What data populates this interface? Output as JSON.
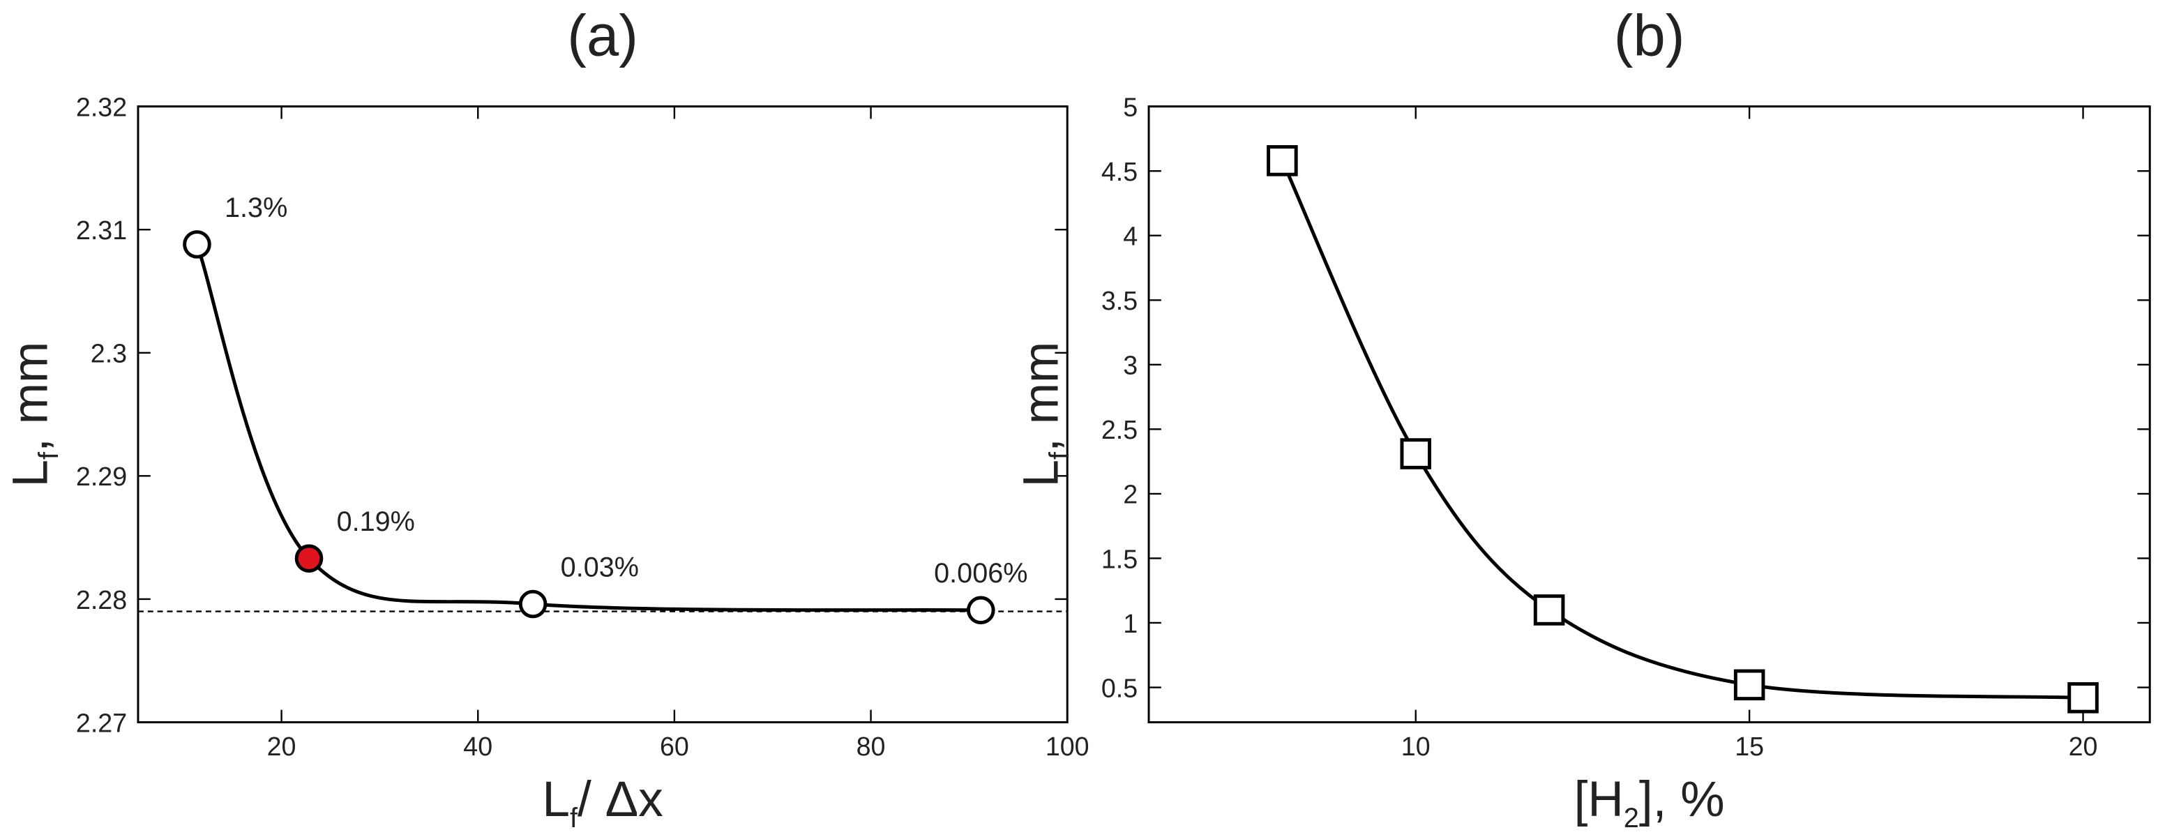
{
  "chart_data": [
    {
      "type": "line",
      "title": "(a)",
      "xlabel": [
        "L",
        "f",
        "/ Δx"
      ],
      "ylabel": [
        "L",
        "f",
        ", mm"
      ],
      "x": [
        11.4,
        22.8,
        45.6,
        91.2
      ],
      "series": [
        {
          "color": "#000000",
          "marker": "circle",
          "marker_fill": [
            "#ffffff",
            "#e0141e",
            "#ffffff",
            "#ffffff"
          ],
          "values": [
            2.3088,
            2.2833,
            2.2796,
            2.2791
          ],
          "value_labels": [
            "1.3%",
            "0.19%",
            "0.03%",
            "0.006%"
          ]
        }
      ],
      "reference_line": 2.279,
      "xlim": [
        5.4,
        100
      ],
      "xticks": [
        20,
        40,
        60,
        80,
        100
      ],
      "ylim": [
        2.27,
        2.32
      ],
      "yticks": [
        2.27,
        2.28,
        2.29,
        2.3,
        2.31,
        2.32
      ]
    },
    {
      "type": "line",
      "title": "(b)",
      "xlabel": [
        "[H",
        "2",
        "], %"
      ],
      "ylabel": [
        "L",
        "f",
        ", mm"
      ],
      "x": [
        8,
        10,
        12,
        15,
        20
      ],
      "series": [
        {
          "color": "#000000",
          "marker": "square",
          "marker_fill": [
            "#ffffff",
            "#ffffff",
            "#ffffff",
            "#ffffff",
            "#ffffff"
          ],
          "values": [
            4.58,
            2.31,
            1.1,
            0.52,
            0.42
          ]
        }
      ],
      "xlim": [
        6,
        21
      ],
      "xticks": [
        10,
        15,
        20
      ],
      "ylim": [
        0.23,
        5
      ],
      "yticks": [
        0.5,
        1,
        1.5,
        2,
        2.5,
        3,
        3.5,
        4,
        4.5,
        5
      ]
    }
  ]
}
